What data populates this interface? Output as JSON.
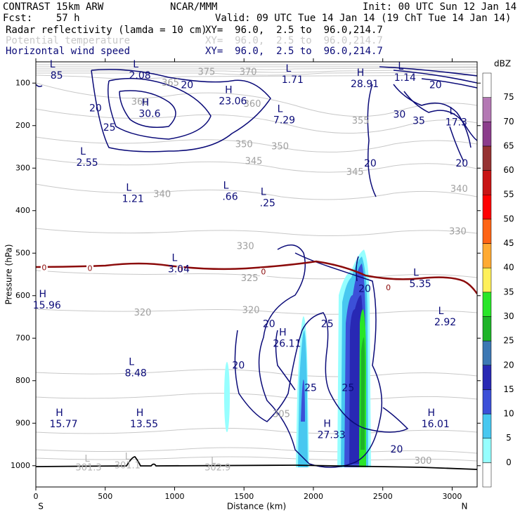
{
  "header": {
    "title": "CONTRAST 15km ARW",
    "center": "NCAR/MMM",
    "init": "Init: 00 UTC Sun 12 Jan 14",
    "fcst": "Fcst:    57 h",
    "valid": "Valid: 09 UTC Tue 14 Jan 14 (19 ChT Tue 14 Jan 14)",
    "fields": [
      {
        "name": "Radar reflectivity (lamda = 10 cm)",
        "xy": "XY=  96.0,  2.5 to  96.0,214.7",
        "color": "#000000"
      },
      {
        "name": "Potential temperature",
        "xy": "XY=  96.0,  2.5 to  96.0,214.7",
        "color": "#c8c8c8"
      },
      {
        "name": "Horizontal wind speed",
        "xy": "XY=  96.0,  2.5 to  96.0,214.7",
        "color": "#0a0a78"
      }
    ]
  },
  "chart_data": {
    "type": "contour-cross-section",
    "xlabel": "Distance (km)",
    "ylabel": "Pressure (hPa)",
    "xlim": [
      0,
      3180
    ],
    "ylim": [
      1050,
      50
    ],
    "x_ticks": [
      0,
      500,
      1000,
      1500,
      2000,
      2500,
      3000
    ],
    "y_ticks": [
      100,
      200,
      300,
      400,
      500,
      600,
      700,
      800,
      900,
      1000
    ],
    "x_end_labels": {
      "left": "S",
      "right": "N"
    },
    "colorbar": {
      "unit": "dBZ",
      "levels": [
        0,
        5,
        10,
        15,
        20,
        25,
        30,
        35,
        40,
        45,
        50,
        55,
        60,
        65,
        70,
        75
      ],
      "colors": [
        "#ffffff",
        "#96ffff",
        "#48c8f0",
        "#3c50d8",
        "#2828b4",
        "#3c78b4",
        "#1eb428",
        "#28e628",
        "#fff05a",
        "#ffaa32",
        "#ff6414",
        "#ff0000",
        "#c81414",
        "#963232",
        "#8c3c8c",
        "#b478b4",
        "#ffffff"
      ]
    },
    "theta_contours": [
      {
        "label": "375",
        "x": 1230,
        "p": 75
      },
      {
        "label": "370",
        "x": 1530,
        "p": 75
      },
      {
        "label": "365",
        "x": 970,
        "p": 100
      },
      {
        "label": "360",
        "x": 750,
        "p": 145
      },
      {
        "label": "360",
        "x": 1560,
        "p": 150
      },
      {
        "label": "355",
        "x": 2340,
        "p": 190
      },
      {
        "label": "350",
        "x": 1500,
        "p": 245
      },
      {
        "label": "350",
        "x": 1760,
        "p": 250
      },
      {
        "label": "345",
        "x": 1570,
        "p": 285
      },
      {
        "label": "345",
        "x": 2300,
        "p": 310
      },
      {
        "label": "340",
        "x": 910,
        "p": 362
      },
      {
        "label": "340",
        "x": 3050,
        "p": 350
      },
      {
        "label": "330",
        "x": 1510,
        "p": 485
      },
      {
        "label": "330",
        "x": 3040,
        "p": 450
      },
      {
        "label": "325",
        "x": 1540,
        "p": 560
      },
      {
        "label": "320",
        "x": 770,
        "p": 641
      },
      {
        "label": "320",
        "x": 1550,
        "p": 635
      },
      {
        "label": "305",
        "x": 1770,
        "p": 880
      },
      {
        "label": "300",
        "x": 2790,
        "p": 990
      }
    ],
    "theta_labels_faint": [
      {
        "label": "L",
        "x": 370,
        "p": 985
      },
      {
        "label": "301.3",
        "x": 380,
        "p": 1005
      },
      {
        "label": "L",
        "x": 660,
        "p": 980
      },
      {
        "label": "301.1",
        "x": 660,
        "p": 1000
      },
      {
        "label": "L",
        "x": 1280,
        "p": 990
      },
      {
        "label": "302.9",
        "x": 1310,
        "p": 1005
      }
    ],
    "wind_extrema": [
      {
        "label": "L",
        "value": "85",
        "x": 150,
        "p": 70
      },
      {
        "label": "L",
        "value": "2.08",
        "x": 750,
        "p": 70
      },
      {
        "label": "L",
        "value": "1.71",
        "x": 1850,
        "p": 80
      },
      {
        "label": "H",
        "value": "28.91",
        "x": 2370,
        "p": 90
      },
      {
        "label": "L",
        "value": "1.14",
        "x": 2660,
        "p": 75
      },
      {
        "label": "H",
        "value": "23.06",
        "x": 1420,
        "p": 130
      },
      {
        "label": "H",
        "value": "30.6",
        "x": 820,
        "p": 160
      },
      {
        "label": "L",
        "value": "7.29",
        "x": 1790,
        "p": 175
      },
      {
        "label": "L",
        "value": "17.3",
        "x": 3030,
        "p": 180
      },
      {
        "label": "L",
        "value": "2.55",
        "x": 370,
        "p": 275
      },
      {
        "label": "L",
        "value": "1.21",
        "x": 700,
        "p": 360
      },
      {
        "label": "L",
        "value": ".66",
        "x": 1400,
        "p": 355
      },
      {
        "label": "L",
        "value": ".25",
        "x": 1670,
        "p": 370
      },
      {
        "label": "L",
        "value": "3.04",
        "x": 1030,
        "p": 525
      },
      {
        "label": "L",
        "value": "5.35",
        "x": 2770,
        "p": 560
      },
      {
        "label": "H",
        "value": "15.96",
        "x": 80,
        "p": 610
      },
      {
        "label": "L",
        "value": "2.92",
        "x": 2950,
        "p": 650
      },
      {
        "label": "H",
        "value": "26.11",
        "x": 1810,
        "p": 700
      },
      {
        "label": "L",
        "value": "8.48",
        "x": 720,
        "p": 770
      },
      {
        "label": "H",
        "value": "15.77",
        "x": 200,
        "p": 890
      },
      {
        "label": "H",
        "value": "13.55",
        "x": 780,
        "p": 890
      },
      {
        "label": "H",
        "value": "27.33",
        "x": 2130,
        "p": 915
      },
      {
        "label": "H",
        "value": "16.01",
        "x": 2880,
        "p": 890
      }
    ],
    "wind_contour_labels": [
      {
        "label": "20",
        "x": 1090,
        "p": 105
      },
      {
        "label": "20",
        "x": 430,
        "p": 160
      },
      {
        "label": "25",
        "x": 530,
        "p": 205
      },
      {
        "label": "30",
        "x": 2620,
        "p": 175
      },
      {
        "label": "35",
        "x": 2760,
        "p": 190
      },
      {
        "label": "20",
        "x": 2880,
        "p": 105
      },
      {
        "label": "20",
        "x": 2410,
        "p": 290
      },
      {
        "label": "20",
        "x": 3070,
        "p": 290
      },
      {
        "label": "20",
        "x": 2370,
        "p": 585
      },
      {
        "label": "20",
        "x": 1680,
        "p": 667
      },
      {
        "label": "25",
        "x": 2100,
        "p": 667
      },
      {
        "label": "20",
        "x": 1460,
        "p": 765
      },
      {
        "label": "25",
        "x": 1980,
        "p": 818
      },
      {
        "label": "25",
        "x": 2250,
        "p": 818
      },
      {
        "label": "20",
        "x": 2600,
        "p": 962
      }
    ],
    "zero_isotherm_labels": [
      {
        "label": "0",
        "x": 60,
        "p": 535
      },
      {
        "label": "0",
        "x": 390,
        "p": 537
      },
      {
        "label": "0",
        "x": 1040,
        "p": 540
      },
      {
        "label": "0",
        "x": 1640,
        "p": 545
      },
      {
        "label": "0",
        "x": 2540,
        "p": 582
      }
    ]
  }
}
